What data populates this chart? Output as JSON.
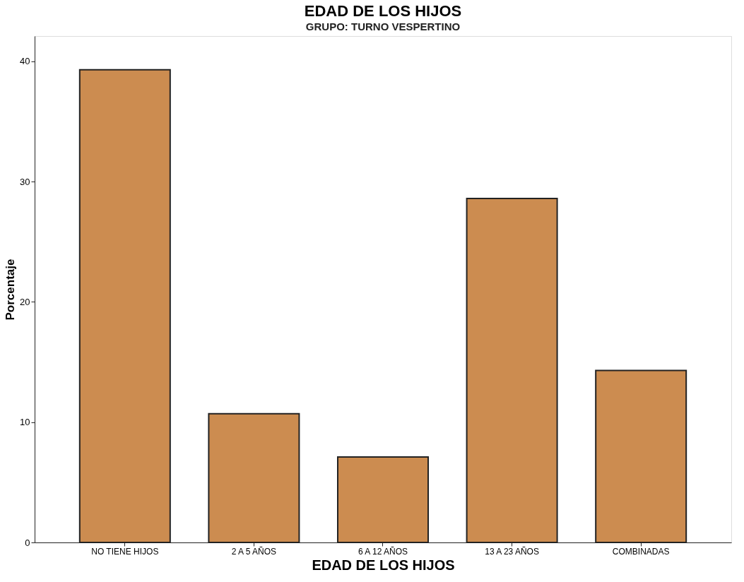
{
  "chart_data": {
    "type": "bar",
    "title": "EDAD DE LOS HIJOS",
    "subtitle": "GRUPO: TURNO VESPERTINO",
    "xlabel": "EDAD DE LOS HIJOS",
    "ylabel": "Porcentaje",
    "categories": [
      "NO TIENE HIJOS",
      "2 A 5 AÑOS",
      "6 A 12 AÑOS",
      "13 A 23 AÑOS",
      "COMBINADAS"
    ],
    "values": [
      39.3,
      10.7,
      7.1,
      28.6,
      14.3
    ],
    "color": "#cc8c50",
    "ylim": [
      0,
      42.1
    ],
    "yticks": [
      0,
      10,
      20,
      30,
      40
    ],
    "grid": false
  }
}
